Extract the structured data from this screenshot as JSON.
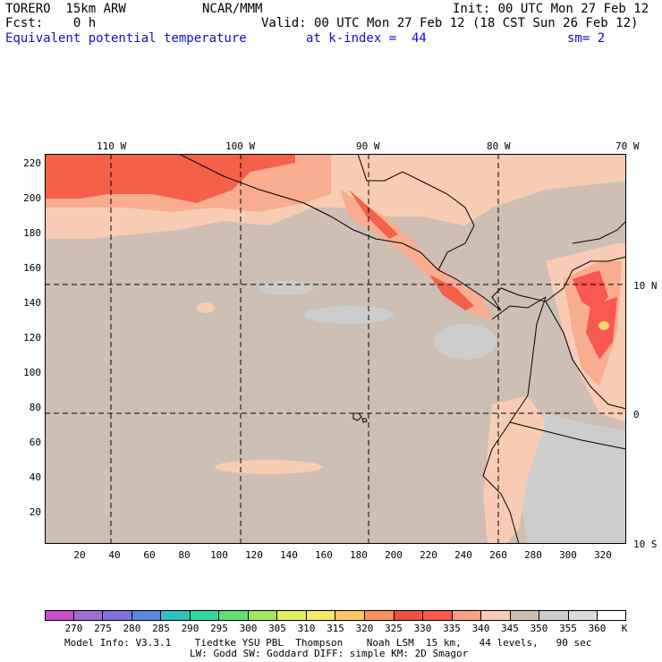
{
  "header": {
    "model": "TORERO  15km ARW",
    "center": "NCAR/MMM",
    "init": "Init: 00 UTC Mon 27 Feb 12",
    "fcst": "Fcst:    0 h",
    "valid": "Valid: 00 UTC Mon 27 Feb 12 (18 CST Sun 26 Feb 12)",
    "field": "Equivalent potential temperature",
    "level": "at k-index =  44",
    "smoothing": "sm= 2"
  },
  "map": {
    "lon_labels": [
      "110 W",
      "100 W",
      "90 W",
      "80 W",
      "70 W"
    ],
    "lat_labels": [
      "10 N",
      "0",
      "10 S"
    ],
    "y_ticks": [
      "220",
      "200",
      "180",
      "160",
      "140",
      "120",
      "100",
      "80",
      "60",
      "40",
      "20"
    ],
    "x_ticks": [
      "20",
      "40",
      "60",
      "80",
      "100",
      "120",
      "140",
      "160",
      "180",
      "200",
      "220",
      "240",
      "260",
      "280",
      "300",
      "320"
    ],
    "colors": {
      "background_field": "#cdbfb3",
      "cool": "#cdcdcd",
      "warm": "#f8ccb4",
      "warmer": "#f8ac90",
      "warmest": "#f46048",
      "hot": "#f85850",
      "peak": "#f8d868",
      "coast": "#000000",
      "grid": "#000000"
    }
  },
  "colorbar": {
    "labels": [
      "270",
      "275",
      "280",
      "285",
      "290",
      "295",
      "300",
      "305",
      "310",
      "315",
      "320",
      "325",
      "330",
      "335",
      "340",
      "345",
      "350",
      "355",
      "360"
    ],
    "unit": "K",
    "colors": [
      "#c850c8",
      "#a070d0",
      "#8070e0",
      "#5a88e0",
      "#30c0c0",
      "#30d8a0",
      "#60e070",
      "#a0e860",
      "#e0f060",
      "#f8e868",
      "#f8c868",
      "#f89060",
      "#f05040",
      "#f85850",
      "#f8a088",
      "#f8ccb4",
      "#cdbfb3",
      "#cdcdcd",
      "#dcdcdc",
      "#ffffff"
    ]
  },
  "footer": {
    "line1": "Model Info: V3.3.1    Tiedtke YSU PBL  Thompson    Noah LSM  15 km,   44 levels,   90 sec",
    "line2": "LW: Godd SW: Goddard DIFF: simple KM: 2D Smagor"
  }
}
